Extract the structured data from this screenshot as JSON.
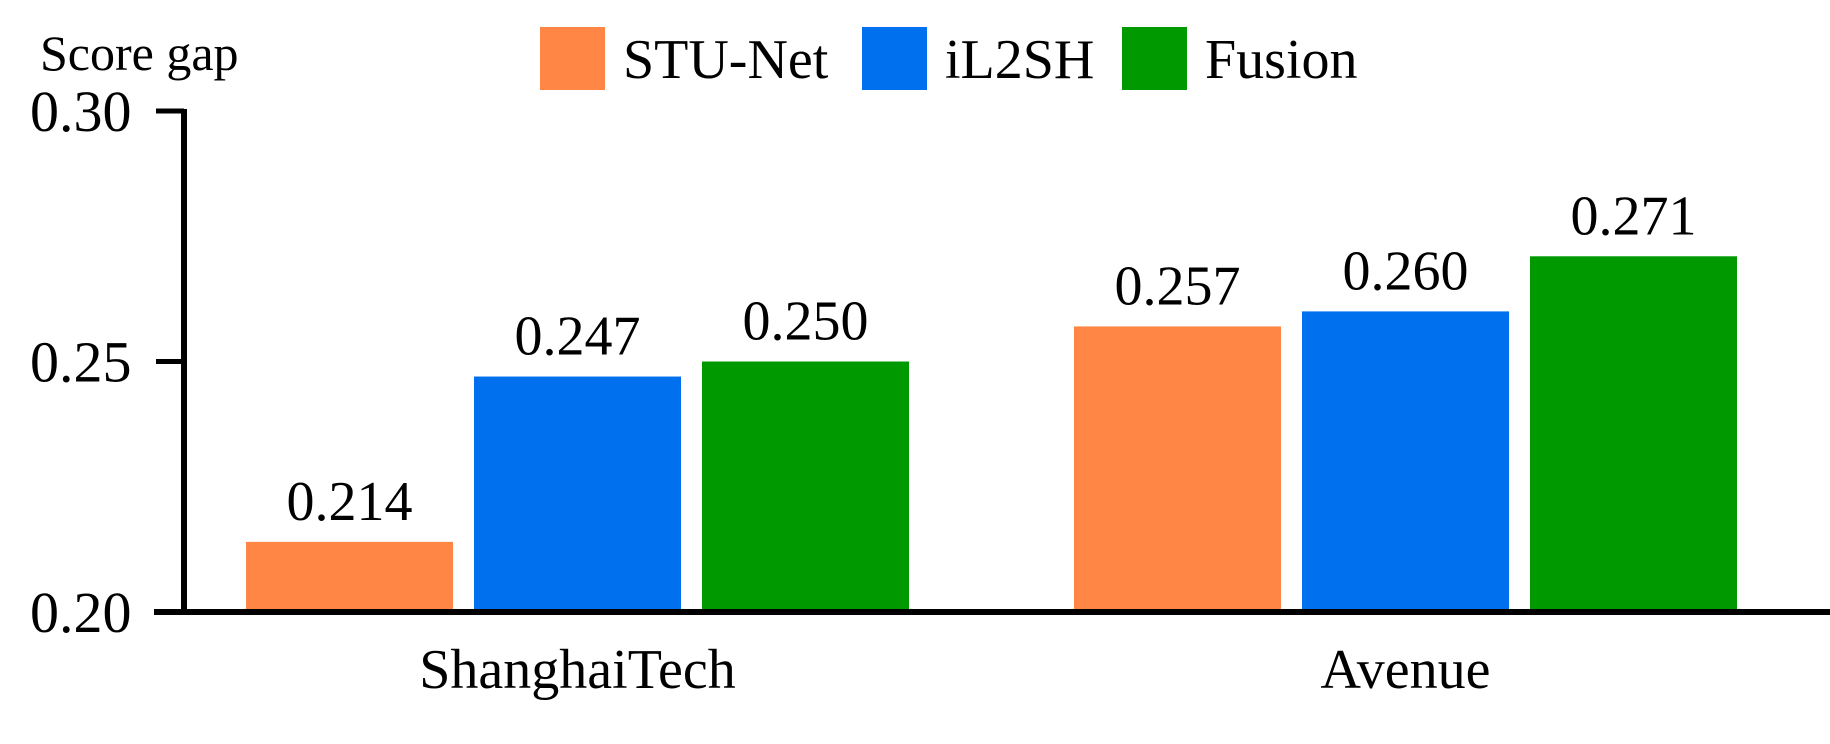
{
  "chart_data": {
    "type": "bar",
    "ylabel": "Score gap",
    "ylim": [
      0.2,
      0.3
    ],
    "yticks": [
      "0.20",
      "0.25",
      "0.30"
    ],
    "ytick_values": [
      0.2,
      0.25,
      0.3
    ],
    "categories": [
      "ShanghaiTech",
      "Avenue"
    ],
    "series": [
      {
        "name": "STU-Net",
        "color": "#FF8645",
        "values": [
          0.214,
          0.257
        ],
        "labels": [
          "0.214",
          "0.257"
        ]
      },
      {
        "name": "iL2SH",
        "color": "#0070EE",
        "values": [
          0.247,
          0.26
        ],
        "labels": [
          "0.247",
          "0.260"
        ]
      },
      {
        "name": "Fusion",
        "color": "#009A00",
        "values": [
          0.25,
          0.271
        ],
        "labels": [
          "0.250",
          "0.271"
        ]
      }
    ],
    "legend_position": "top",
    "grid": false
  }
}
